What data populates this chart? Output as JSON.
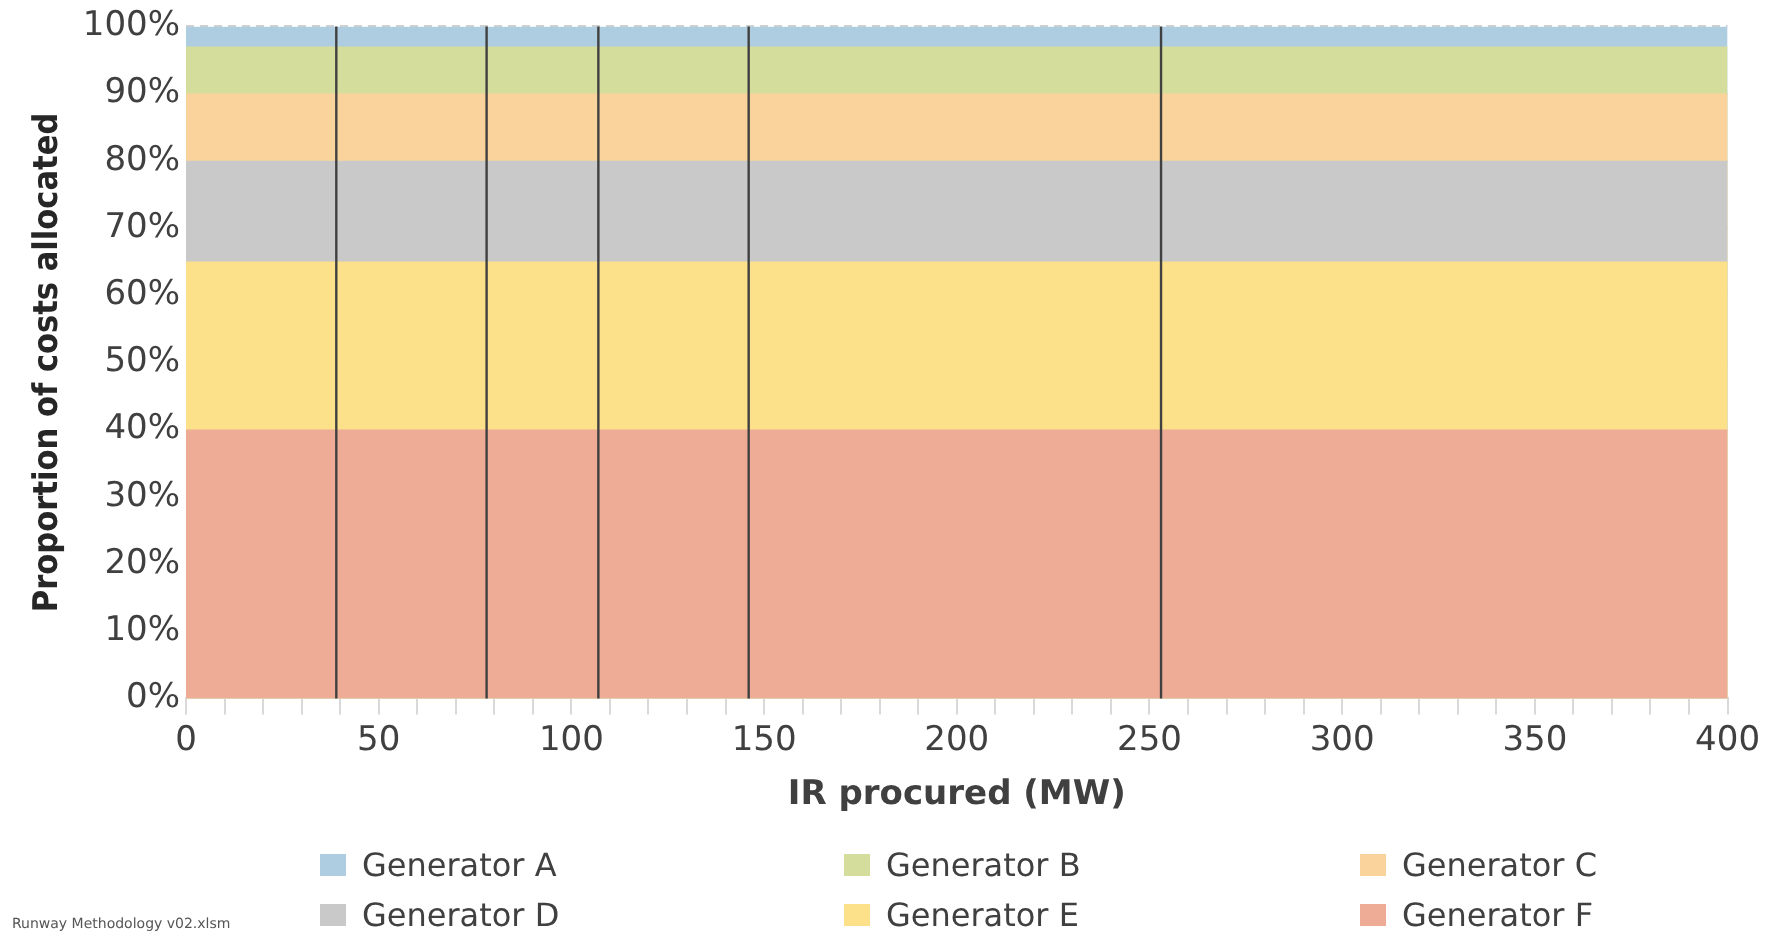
{
  "chart_data": {
    "type": "area",
    "stacked": true,
    "xlabel": "IR procured (MW)",
    "ylabel": "Proportion of costs allocated",
    "x": [
      0,
      400
    ],
    "series": [
      {
        "name": "Generator F",
        "color": "#eeab96",
        "values": [
          40,
          40
        ]
      },
      {
        "name": "Generator E",
        "color": "#fce18a",
        "values": [
          25,
          25
        ]
      },
      {
        "name": "Generator D",
        "color": "#c9c9c9",
        "values": [
          15,
          15
        ]
      },
      {
        "name": "Generator C",
        "color": "#f9d39b",
        "values": [
          10,
          10
        ]
      },
      {
        "name": "Generator B",
        "color": "#d4dd9c",
        "values": [
          7,
          7
        ]
      },
      {
        "name": "Generator A",
        "color": "#aecde0",
        "values": [
          3,
          3
        ]
      }
    ],
    "xlim": [
      0,
      400
    ],
    "xticks": [
      0,
      {
        "value": 10,
        "label": null
      },
      {
        "value": 20,
        "label": null
      },
      {
        "value": 30,
        "label": null
      },
      {
        "value": 40,
        "label": null
      },
      50,
      {
        "value": 60,
        "label": null
      },
      {
        "value": 70,
        "label": null
      },
      {
        "value": 80,
        "label": null
      },
      {
        "value": 90,
        "label": null
      },
      100,
      {
        "value": 110,
        "label": null
      },
      {
        "value": 120,
        "label": null
      },
      {
        "value": 130,
        "label": null
      },
      {
        "value": 140,
        "label": null
      },
      150,
      {
        "value": 160,
        "label": null
      },
      {
        "value": 170,
        "label": null
      },
      {
        "value": 180,
        "label": null
      },
      {
        "value": 190,
        "label": null
      },
      200,
      {
        "value": 210,
        "label": null
      },
      {
        "value": 220,
        "label": null
      },
      {
        "value": 230,
        "label": null
      },
      {
        "value": 240,
        "label": null
      },
      250,
      {
        "value": 260,
        "label": null
      },
      {
        "value": 270,
        "label": null
      },
      {
        "value": 280,
        "label": null
      },
      {
        "value": 290,
        "label": null
      },
      300,
      {
        "value": 310,
        "label": null
      },
      {
        "value": 320,
        "label": null
      },
      {
        "value": 330,
        "label": null
      },
      {
        "value": 340,
        "label": null
      },
      350,
      {
        "value": 360,
        "label": null
      },
      {
        "value": 370,
        "label": null
      },
      {
        "value": 380,
        "label": null
      },
      {
        "value": 390,
        "label": null
      },
      400
    ],
    "ylim": [
      0,
      100
    ],
    "yticks": [
      {
        "value": 0,
        "label": "0%"
      },
      {
        "value": 10,
        "label": "10%"
      },
      {
        "value": 20,
        "label": "20%"
      },
      {
        "value": 30,
        "label": "30%"
      },
      {
        "value": 40,
        "label": "40%"
      },
      {
        "value": 50,
        "label": "50%"
      },
      {
        "value": 60,
        "label": "60%"
      },
      {
        "value": 70,
        "label": "70%"
      },
      {
        "value": 80,
        "label": "80%"
      },
      {
        "value": 90,
        "label": "90%"
      },
      {
        "value": 100,
        "label": "100%"
      }
    ],
    "grid": "y",
    "legend": "bottom",
    "ref_lines": [
      {
        "axis": "x",
        "value": 39,
        "color": "#404040"
      },
      {
        "axis": "x",
        "value": 78,
        "color": "#404040"
      },
      {
        "axis": "x",
        "value": 107,
        "color": "#404040"
      },
      {
        "axis": "x",
        "value": 146,
        "color": "#404040"
      },
      {
        "axis": "x",
        "value": 253,
        "color": "#404040"
      }
    ],
    "annotations": [
      "Runway Methodology v02.xlsm"
    ]
  }
}
